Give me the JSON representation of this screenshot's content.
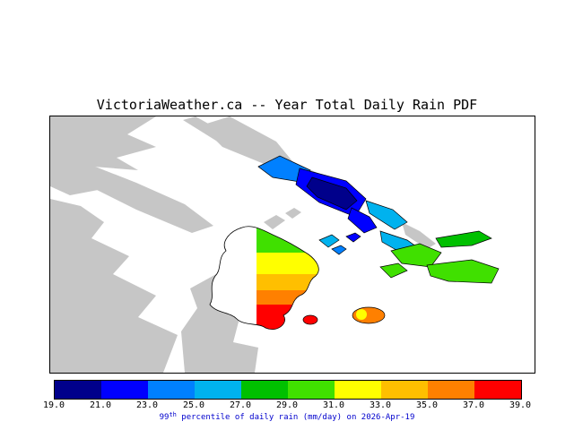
{
  "title": "VictoriaWeather.ca -- Year Total Daily Rain PDF",
  "map": {
    "land_color": "#c6c6c6",
    "water_color": "#ffffff",
    "outline_color": "#000000"
  },
  "palette": {
    "colors": [
      "#00008B",
      "#0000FF",
      "#0080FF",
      "#00B2EE",
      "#00C000",
      "#40E000",
      "#FFFF00",
      "#FFBF00",
      "#FF8000",
      "#FF0000"
    ]
  },
  "colorbar": {
    "tick_labels": [
      "19.0",
      "21.0",
      "23.0",
      "25.0",
      "27.0",
      "29.0",
      "31.0",
      "33.0",
      "35.0",
      "37.0",
      "39.0"
    ],
    "scale": {
      "min": 19.0,
      "max": 39.0,
      "step": 2.0,
      "unit": "mm/day"
    }
  },
  "caption": {
    "prefix": "99",
    "superscript": "th",
    "rest": " percentile of daily rain (mm/day) on 2026-Apr-19",
    "color": "#0000CD"
  }
}
